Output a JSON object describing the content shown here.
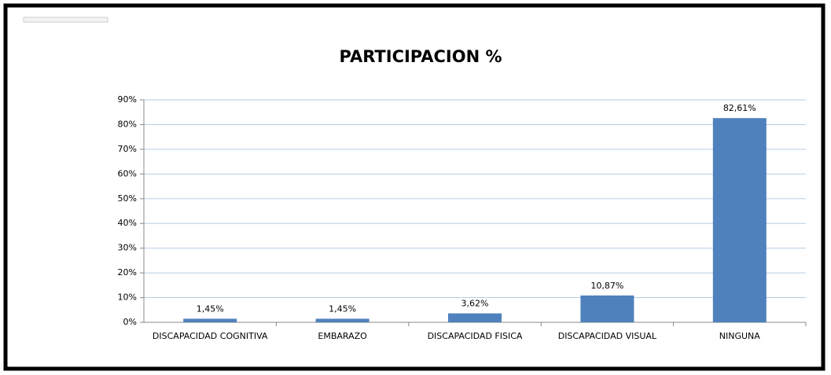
{
  "chart_data": {
    "type": "bar",
    "title": "PARTICIPACION %",
    "categories": [
      "DISCAPACIDAD COGNITIVA",
      "EMBARAZO",
      "DISCAPACIDAD FISICA",
      "DISCAPACIDAD VISUAL",
      "NINGUNA"
    ],
    "values": [
      1.45,
      1.45,
      3.62,
      10.87,
      82.61
    ],
    "value_labels": [
      "1,45%",
      "1,45%",
      "3,62%",
      "10,87%",
      "82,61%"
    ],
    "color": "#4f81bd",
    "ylim": [
      0,
      90
    ],
    "yticks": [
      {
        "value": 0,
        "label": "0%"
      },
      {
        "value": 10,
        "label": "10%"
      },
      {
        "value": 20,
        "label": "20%"
      },
      {
        "value": 30,
        "label": "30%"
      },
      {
        "value": 40,
        "label": "40%"
      },
      {
        "value": 50,
        "label": "50%"
      },
      {
        "value": 60,
        "label": "60%"
      },
      {
        "value": 70,
        "label": "70%"
      },
      {
        "value": 80,
        "label": "80%"
      },
      {
        "value": 90,
        "label": "90%"
      }
    ],
    "grid": true
  }
}
